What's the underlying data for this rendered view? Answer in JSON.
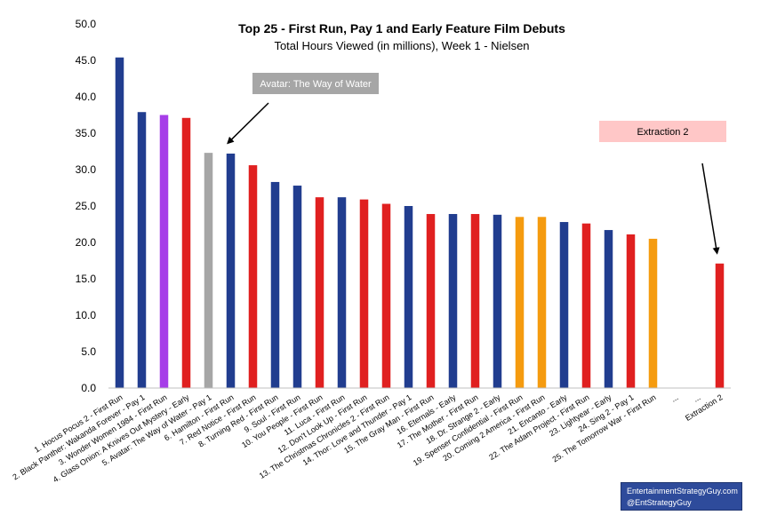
{
  "chart_data": {
    "type": "bar",
    "title": "Top 25 - First Run, Pay 1 and Early Feature Film Debuts",
    "subtitle": "Total Hours Viewed (in millions), Week 1 - Nielsen",
    "ylim": [
      0,
      50
    ],
    "yticks": [
      "0.0",
      "5.0",
      "10.0",
      "15.0",
      "20.0",
      "25.0",
      "30.0",
      "35.0",
      "40.0",
      "45.0",
      "50.0"
    ],
    "grid": false,
    "categories": [
      "1. Hocus Pocus 2 - First Run",
      "2. Black Panther: Wakanda Forever - Pay 1",
      "3. Wonder Women 1984 - First Run",
      "4. Glass Onion: A Knives Out Mystery - Early",
      "5. Avatar: The Way of Water - Pay 1",
      "6. Hamilton - First Run",
      "7. Red Notice - First Run",
      "8. Turning Red - First Run",
      "9. Soul - First Run",
      "10. You People - First Run",
      "11. Luca - First Run",
      "12. Don't Look Up - First Run",
      "13. The Christmas Chronicles 2 - First Run",
      "14. Thor: Love and Thunder - Pay 1",
      "15. The Gray Man - First Run",
      "16. Eternals - Early",
      "17. The Mother - First Run",
      "18. Dr. Strange 2 - Early",
      "19. Spenser Confidential - First Run",
      "20. Coming 2 America - First Run",
      "21. Encanto - Early",
      "22. The Adam Project - First Run",
      "23. Lightyear - Early",
      "24. Sing 2 - Pay 1",
      "25. The Tomorrow War - First Run",
      "...",
      "...",
      "Extraction 2"
    ],
    "values": [
      45.4,
      37.9,
      37.5,
      37.1,
      32.3,
      32.2,
      30.6,
      28.3,
      27.8,
      26.2,
      26.2,
      25.9,
      25.3,
      25.0,
      23.9,
      23.9,
      23.9,
      23.8,
      23.5,
      23.5,
      22.8,
      22.6,
      21.7,
      21.1,
      20.5,
      null,
      null,
      17.1
    ],
    "colors": [
      "#213d8f",
      "#213d8f",
      "#a63ee8",
      "#e02020",
      "#a6a6a6",
      "#213d8f",
      "#e02020",
      "#213d8f",
      "#213d8f",
      "#e02020",
      "#213d8f",
      "#e02020",
      "#e02020",
      "#213d8f",
      "#e02020",
      "#213d8f",
      "#e02020",
      "#213d8f",
      "#f59b0f",
      "#f59b0f",
      "#213d8f",
      "#e02020",
      "#213d8f",
      "#e02020",
      "#f59b0f",
      null,
      null,
      "#e02020"
    ],
    "annotations": [
      {
        "text": "Avatar: The Way of Water",
        "target_index": 5,
        "box_color": "#a6a6a6",
        "text_color": "#ffffff"
      },
      {
        "text": "Extraction 2",
        "target_index": 27,
        "box_color": "#ffc7c7",
        "text_color": "#000000"
      }
    ]
  },
  "credit": {
    "line1": "EntertainmentStrategyGuy.com",
    "line2": "@EntStrategyGuy"
  }
}
